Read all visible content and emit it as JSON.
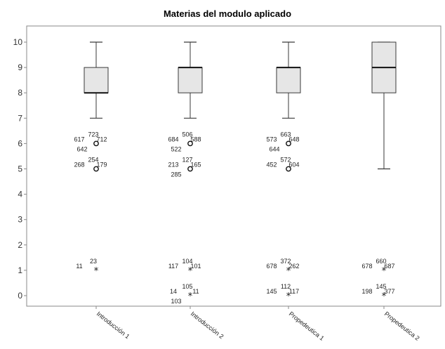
{
  "chart_data": {
    "type": "boxplot",
    "title": "Materias del modulo aplicado",
    "xlabel": "",
    "ylabel": "",
    "ylim": [
      -0.4,
      10.5
    ],
    "yticks": [
      0,
      1,
      2,
      3,
      4,
      5,
      6,
      7,
      8,
      9,
      10
    ],
    "grid": false,
    "categories": [
      "Introducción 1",
      "Introducción 2",
      "Propedeutica 1",
      "Propedeutica 2"
    ],
    "boxes": [
      {
        "min": 7,
        "q1": 8,
        "median": 8,
        "q3": 9,
        "max": 10
      },
      {
        "min": 7,
        "q1": 8,
        "median": 9,
        "q3": 9,
        "max": 10
      },
      {
        "min": 7,
        "q1": 8,
        "median": 9,
        "q3": 9,
        "max": 10
      },
      {
        "min": 5,
        "q1": 8,
        "median": 9,
        "q3": 10,
        "max": 10
      }
    ],
    "outliers": [
      {
        "category": 0,
        "value": 6,
        "marker": "circle",
        "labels": [
          "723",
          "617",
          "712",
          "642"
        ]
      },
      {
        "category": 0,
        "value": 5,
        "marker": "circle",
        "labels": [
          "254",
          "268",
          "179"
        ]
      },
      {
        "category": 0,
        "value": 1,
        "marker": "star",
        "labels": [
          "23",
          "11"
        ]
      },
      {
        "category": 1,
        "value": 6,
        "marker": "circle",
        "labels": [
          "506",
          "684",
          "588",
          "522"
        ]
      },
      {
        "category": 1,
        "value": 5,
        "marker": "circle",
        "labels": [
          "127",
          "213",
          "165",
          "285"
        ]
      },
      {
        "category": 1,
        "value": 1,
        "marker": "star",
        "labels": [
          "104",
          "117",
          "101"
        ]
      },
      {
        "category": 1,
        "value": 0,
        "marker": "star",
        "labels": [
          "105",
          "14",
          "11",
          "103"
        ]
      },
      {
        "category": 2,
        "value": 6,
        "marker": "circle",
        "labels": [
          "663",
          "573",
          "648",
          "644"
        ]
      },
      {
        "category": 2,
        "value": 5,
        "marker": "circle",
        "labels": [
          "572",
          "452",
          "604"
        ]
      },
      {
        "category": 2,
        "value": 1,
        "marker": "star",
        "labels": [
          "372",
          "678",
          "262"
        ]
      },
      {
        "category": 2,
        "value": 0,
        "marker": "star",
        "labels": [
          "112",
          "145",
          "117"
        ]
      },
      {
        "category": 3,
        "value": 1,
        "marker": "star",
        "labels": [
          "660",
          "678",
          "687"
        ]
      },
      {
        "category": 3,
        "value": 0,
        "marker": "star",
        "labels": [
          "145",
          "198",
          "377"
        ]
      }
    ],
    "colors": {
      "box_fill": "#e6e6e6",
      "box_stroke": "#3a3a3a",
      "axis": "#8a8a8a"
    }
  }
}
